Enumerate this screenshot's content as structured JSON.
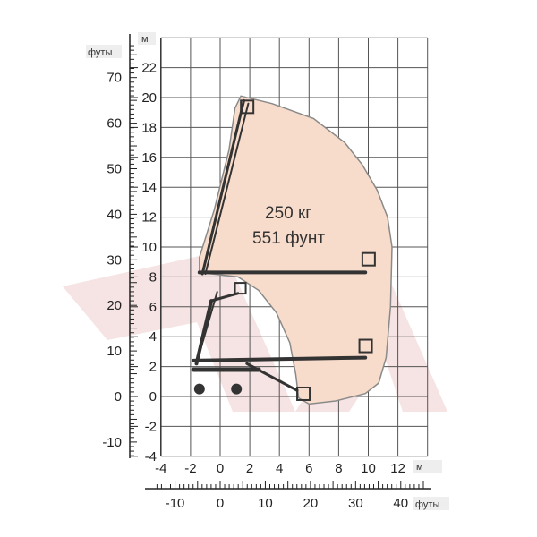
{
  "units": {
    "m_left": "м",
    "ft_left": "футы",
    "m_bottom": "м",
    "ft_bottom": "футы"
  },
  "load": {
    "kg": "250 кг",
    "lb": "551 фунт"
  },
  "axes": {
    "y_m_ticks": [
      "22",
      "20",
      "18",
      "16",
      "14",
      "12",
      "10",
      "8",
      "6",
      "4",
      "2",
      "0",
      "-2",
      "-4"
    ],
    "y_ft_ticks": [
      "70",
      "60",
      "50",
      "40",
      "30",
      "20",
      "10",
      "0",
      "-10"
    ],
    "x_m_ticks": [
      "-4",
      "-2",
      "0",
      "2",
      "4",
      "6",
      "8",
      "10",
      "12"
    ],
    "x_ft_ticks": [
      "-10",
      "0",
      "10",
      "20",
      "30",
      "40"
    ],
    "x_range_m": [
      -4,
      14
    ],
    "y_range_m": [
      -4,
      24
    ]
  },
  "colors": {
    "envelope_fill": "#f8dccb",
    "envelope_stroke": "#8a8a8a",
    "grid": "#555555",
    "machine": "#333333",
    "watermark": "#f6e3e3"
  },
  "envelope_m": [
    [
      1.4,
      20.1
    ],
    [
      3.5,
      19.6
    ],
    [
      6.3,
      18.6
    ],
    [
      8.4,
      17.0
    ],
    [
      9.6,
      15.5
    ],
    [
      10.6,
      13.8
    ],
    [
      11.3,
      12.0
    ],
    [
      11.6,
      10.0
    ],
    [
      11.5,
      6.0
    ],
    [
      11.2,
      2.6
    ],
    [
      10.7,
      0.9
    ],
    [
      9.8,
      0.2
    ],
    [
      7.8,
      -0.3
    ],
    [
      6.0,
      -0.5
    ],
    [
      5.3,
      -0.1
    ],
    [
      5.1,
      1.5
    ],
    [
      4.7,
      3.6
    ],
    [
      3.8,
      5.6
    ],
    [
      2.6,
      7.1
    ],
    [
      1.2,
      8.0
    ],
    [
      -1.4,
      8.3
    ],
    [
      -1.4,
      9.3
    ],
    [
      -0.4,
      12.5
    ],
    [
      0.6,
      16.5
    ],
    [
      1.0,
      19.3
    ]
  ]
}
